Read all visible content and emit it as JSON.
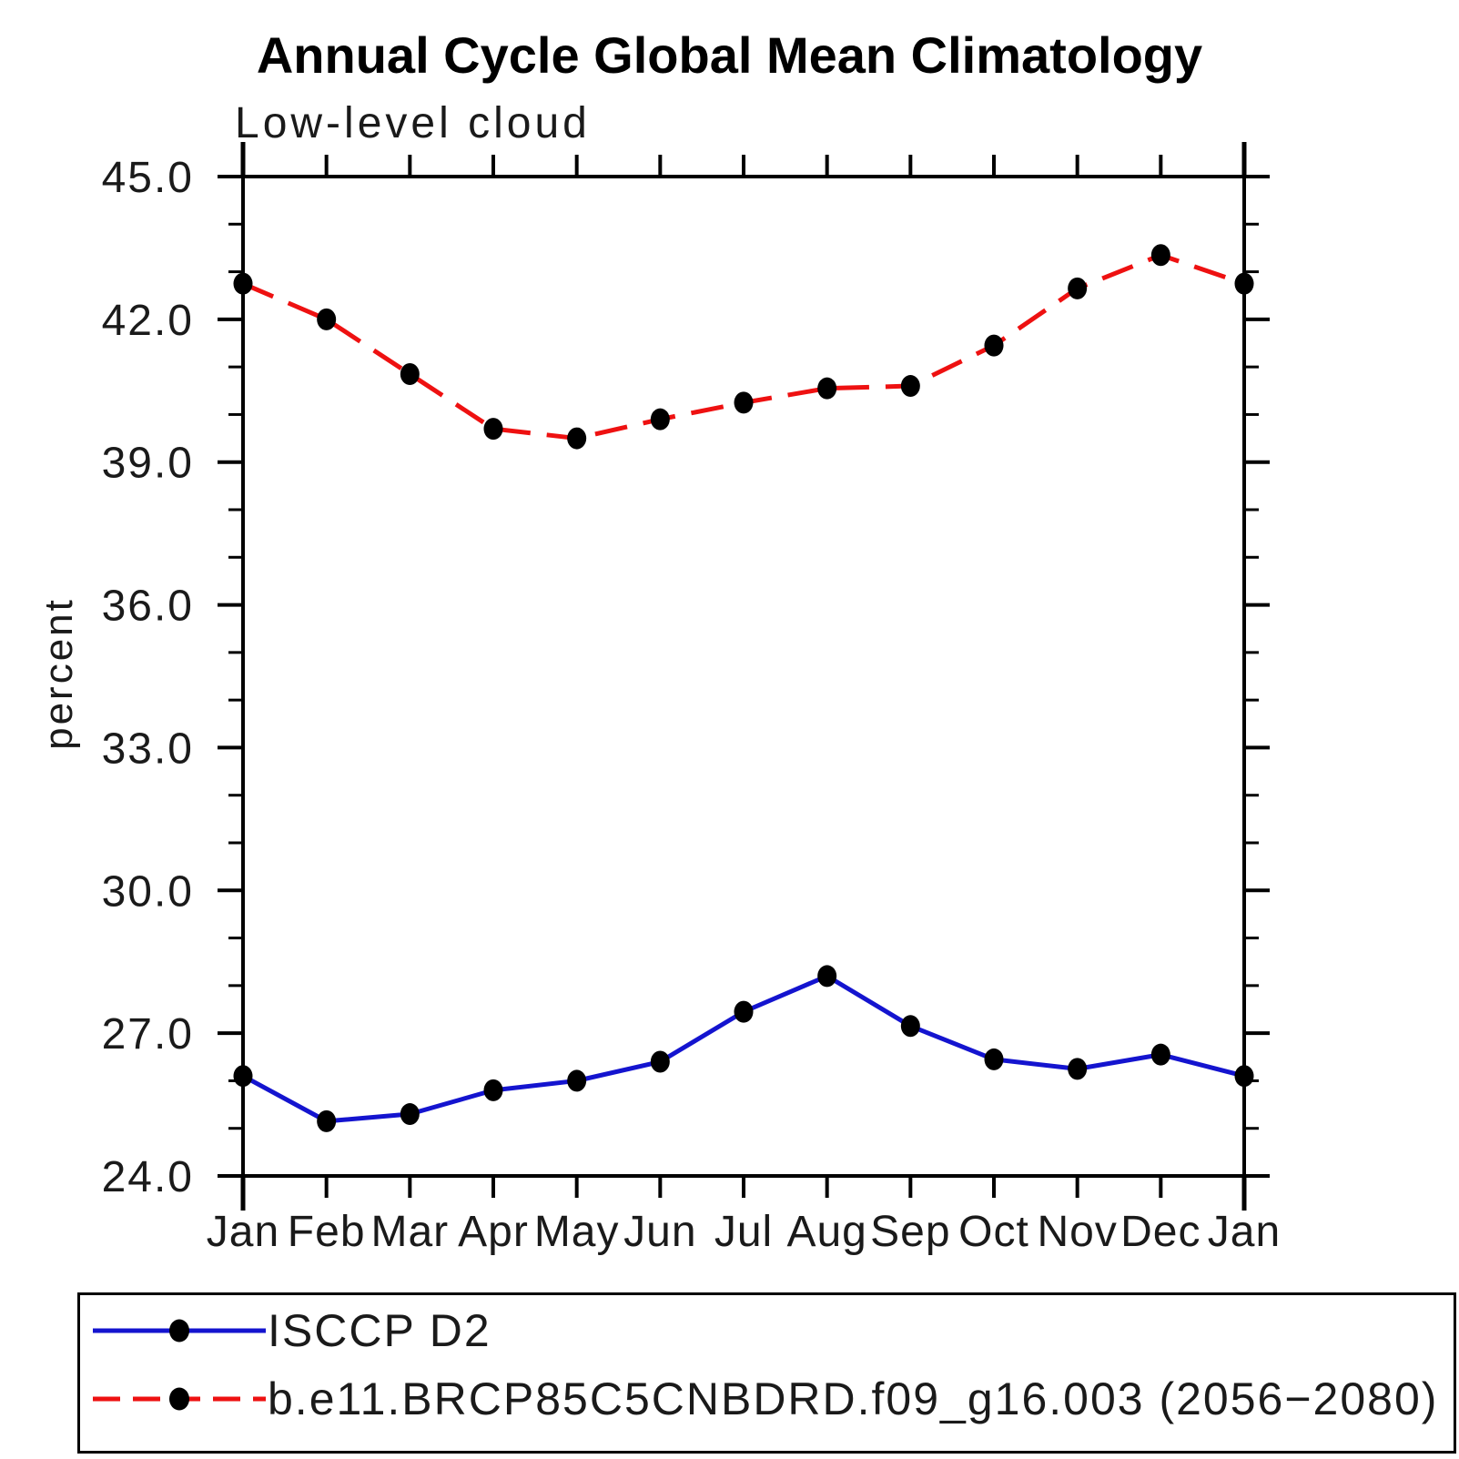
{
  "chart_data": {
    "type": "line",
    "title": "Annual Cycle Global Mean Climatology",
    "subtitle": "Low-level cloud",
    "ylabel": "percent",
    "xlabel": "",
    "x_categories": [
      "Jan",
      "Feb",
      "Mar",
      "Apr",
      "May",
      "Jun",
      "Jul",
      "Aug",
      "Sep",
      "Oct",
      "Nov",
      "Dec",
      "Jan"
    ],
    "ylim": [
      24.0,
      45.0
    ],
    "ytick_major_interval": 3.0,
    "ytick_minor_interval": 1.0,
    "ytick_labels": [
      "45.0",
      "42.0",
      "39.0",
      "36.0",
      "33.0",
      "30.0",
      "27.0",
      "24.0"
    ],
    "grid": false,
    "axis_color": "#000000",
    "marker_color": "#000000",
    "legend_position": "bottom-left-box",
    "series": [
      {
        "name": "ISCCP D2",
        "color": "#1414cf",
        "line_style": "solid",
        "marker": "filled-black-circle",
        "values": [
          26.1,
          25.15,
          25.3,
          25.8,
          26.0,
          26.4,
          27.45,
          28.2,
          27.15,
          26.45,
          26.25,
          26.55,
          26.1
        ]
      },
      {
        "name": "b.e11.BRCP85C5CNBDRD.f09_g16.003 (2056−2080)",
        "color": "#ee1111",
        "line_style": "dashed",
        "marker": "filled-black-circle",
        "values": [
          42.75,
          42.0,
          40.85,
          39.7,
          39.5,
          39.9,
          40.25,
          40.55,
          40.6,
          41.45,
          42.65,
          43.35,
          42.75
        ]
      }
    ]
  }
}
